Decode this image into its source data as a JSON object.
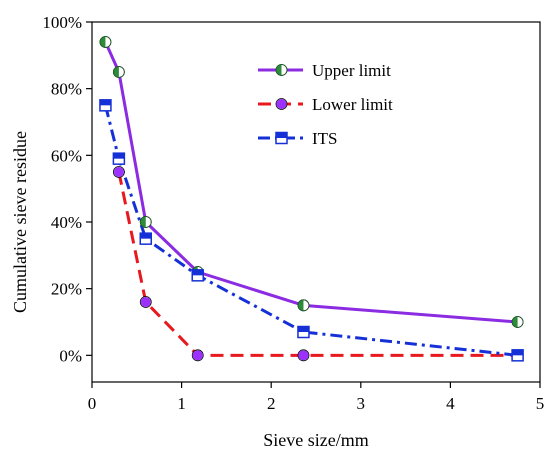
{
  "chart_data": {
    "type": "line",
    "xlabel": "Sieve size/mm",
    "ylabel": "Cumulative sieve residue",
    "xlim": [
      0,
      5
    ],
    "ylim": [
      -0.08,
      1.0
    ],
    "x_ticks": [
      0,
      1,
      2,
      3,
      4,
      5
    ],
    "x_tick_labels": [
      "0",
      "1",
      "2",
      "3",
      "4",
      "5"
    ],
    "y_ticks": [
      0,
      0.2,
      0.4,
      0.6,
      0.8,
      1.0
    ],
    "y_tick_labels": [
      "0%",
      "20%",
      "40%",
      "60%",
      "80%",
      "100%"
    ],
    "grid": false,
    "legend_position": "top-right",
    "series": [
      {
        "name": "Upper limit",
        "color": "#8B2BE2",
        "line_style": "solid",
        "marker": "half-filled-circle",
        "marker_fill": "#2E8B3A",
        "x": [
          0.15,
          0.3,
          0.6,
          1.18,
          2.36,
          4.75
        ],
        "y": [
          0.94,
          0.85,
          0.4,
          0.25,
          0.15,
          0.1
        ]
      },
      {
        "name": "Lower limit",
        "color": "#E8191E",
        "line_style": "dashed",
        "marker": "circle",
        "marker_fill": "#9B30FF",
        "x": [
          0.3,
          0.6,
          1.18,
          2.36,
          4.75
        ],
        "y": [
          0.55,
          0.16,
          0.0,
          0.0,
          0.0
        ]
      },
      {
        "name": "ITS",
        "color": "#1430D6",
        "line_style": "dash-dot",
        "marker": "half-filled-square",
        "marker_fill": "#1430D6",
        "x": [
          0.15,
          0.3,
          0.6,
          1.18,
          2.36,
          4.75
        ],
        "y": [
          0.75,
          0.59,
          0.35,
          0.24,
          0.07,
          0.0
        ]
      }
    ]
  }
}
